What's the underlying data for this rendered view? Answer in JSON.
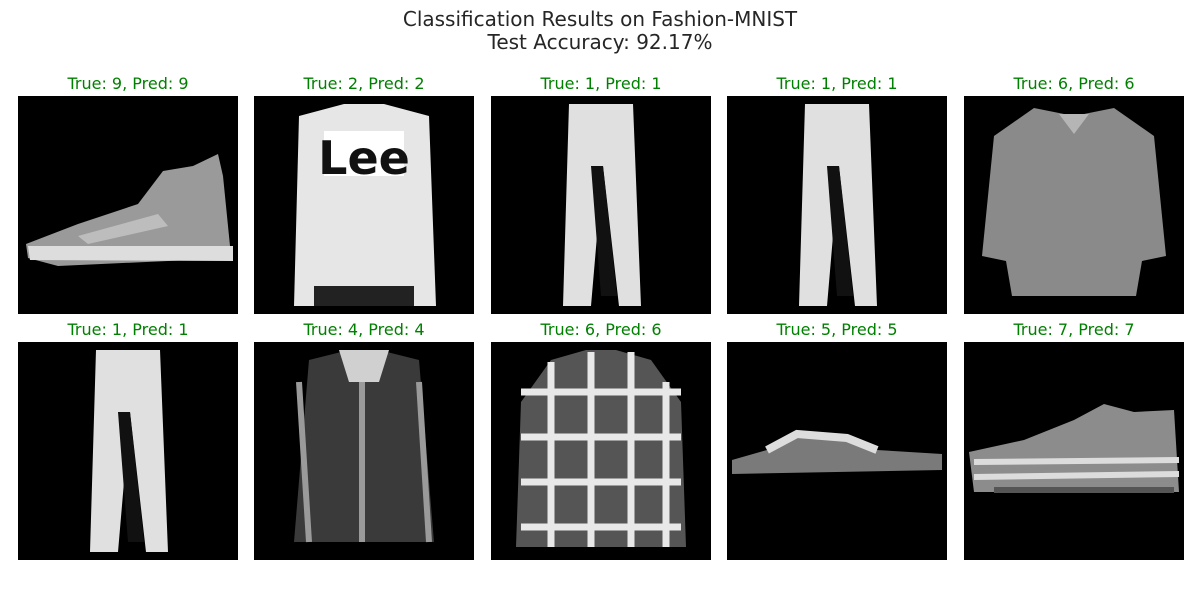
{
  "chart_data": {
    "type": "image-grid",
    "title": "Classification Results on Fashion-MNIST",
    "subtitle": "Test Accuracy: 92.17%",
    "correct_color": "#008000",
    "grid": {
      "rows": 2,
      "cols": 5
    },
    "panels": [
      {
        "true_label": 9,
        "pred_label": 9,
        "title": "True: 9, Pred: 9",
        "item": "ankle-boot"
      },
      {
        "true_label": 2,
        "pred_label": 2,
        "title": "True: 2, Pred: 2",
        "item": "pullover"
      },
      {
        "true_label": 1,
        "pred_label": 1,
        "title": "True: 1, Pred: 1",
        "item": "trouser"
      },
      {
        "true_label": 1,
        "pred_label": 1,
        "title": "True: 1, Pred: 1",
        "item": "trouser"
      },
      {
        "true_label": 6,
        "pred_label": 6,
        "title": "True: 6, Pred: 6",
        "item": "shirt"
      },
      {
        "true_label": 1,
        "pred_label": 1,
        "title": "True: 1, Pred: 1",
        "item": "trouser"
      },
      {
        "true_label": 4,
        "pred_label": 4,
        "title": "True: 4, Pred: 4",
        "item": "coat"
      },
      {
        "true_label": 6,
        "pred_label": 6,
        "title": "True: 6, Pred: 6",
        "item": "plaid-shirt"
      },
      {
        "true_label": 5,
        "pred_label": 5,
        "title": "True: 5, Pred: 5",
        "item": "sandal"
      },
      {
        "true_label": 7,
        "pred_label": 7,
        "title": "True: 7, Pred: 7",
        "item": "sneaker"
      }
    ]
  }
}
